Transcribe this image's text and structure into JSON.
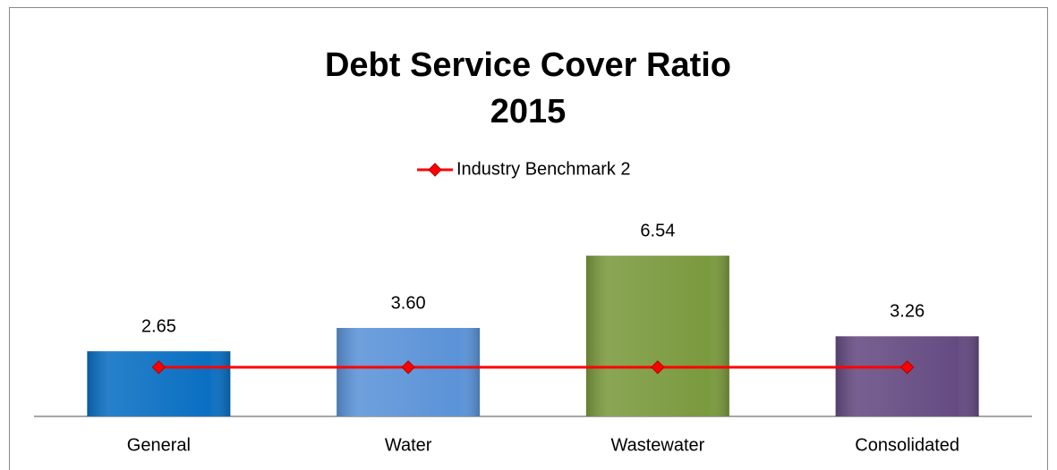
{
  "chart_data": {
    "type": "bar",
    "title": [
      "Debt Service Cover Ratio",
      "2015"
    ],
    "categories": [
      "General",
      "Water",
      "Wastewater",
      "Consolidated"
    ],
    "values": [
      2.65,
      3.6,
      6.54,
      3.26
    ],
    "value_labels": [
      "2.65",
      "3.60",
      "6.54",
      "3.26"
    ],
    "colors": [
      "#0a6fc2",
      "#5b93d8",
      "#7a9a3e",
      "#654b82"
    ],
    "series": [
      {
        "name": "Industry Benchmark 2",
        "type": "line",
        "color": "#ff0000",
        "values": [
          2,
          2,
          2,
          2
        ]
      }
    ],
    "ylim": [
      0,
      8
    ],
    "legend": "top"
  }
}
